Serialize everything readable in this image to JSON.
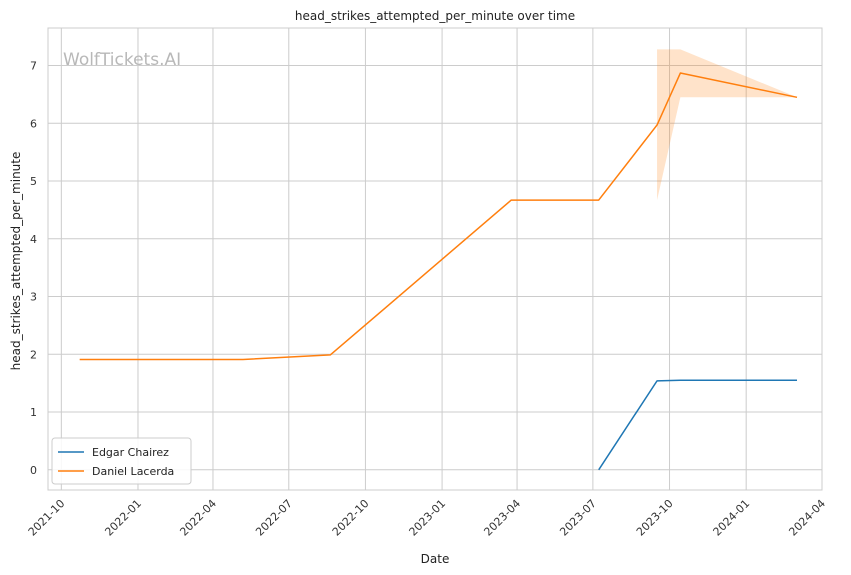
{
  "chart_data": {
    "type": "line",
    "title": "head_strikes_attempted_per_minute over time",
    "xlabel": "Date",
    "ylabel": "head_strikes_attempted_per_minute",
    "watermark": "WolfTickets.AI",
    "xlim": [
      "2021-09-15",
      "2024-04-01"
    ],
    "ylim": [
      -0.35,
      7.65
    ],
    "x_ticks": [
      "2021-10",
      "2022-01",
      "2022-04",
      "2022-07",
      "2022-10",
      "2023-01",
      "2023-04",
      "2023-07",
      "2023-10",
      "2024-01",
      "2024-04"
    ],
    "y_ticks": [
      0,
      1,
      2,
      3,
      4,
      5,
      6,
      7
    ],
    "grid": true,
    "legend": "lower-left",
    "series": [
      {
        "name": "Edgar Chairez",
        "color": "#1f77b4",
        "x": [
          "2023-07-08",
          "2023-09-16",
          "2023-10-14",
          "2024-03-02"
        ],
        "y": [
          0.0,
          1.54,
          1.55,
          1.55
        ]
      },
      {
        "name": "Daniel Lacerda",
        "color": "#ff7f0e",
        "x": [
          "2021-10-23",
          "2022-05-07",
          "2022-08-20",
          "2023-03-25",
          "2023-07-08",
          "2023-09-16",
          "2023-10-14",
          "2024-03-02"
        ],
        "y": [
          1.91,
          1.91,
          1.99,
          4.67,
          4.67,
          5.97,
          6.87,
          6.45
        ],
        "band": {
          "x": [
            "2023-09-16",
            "2023-09-16",
            "2023-10-14",
            "2024-03-02"
          ],
          "lower": [
            4.67,
            4.67,
            6.45,
            6.45
          ],
          "upper": [
            7.28,
            7.28,
            7.28,
            6.45
          ]
        }
      }
    ]
  }
}
